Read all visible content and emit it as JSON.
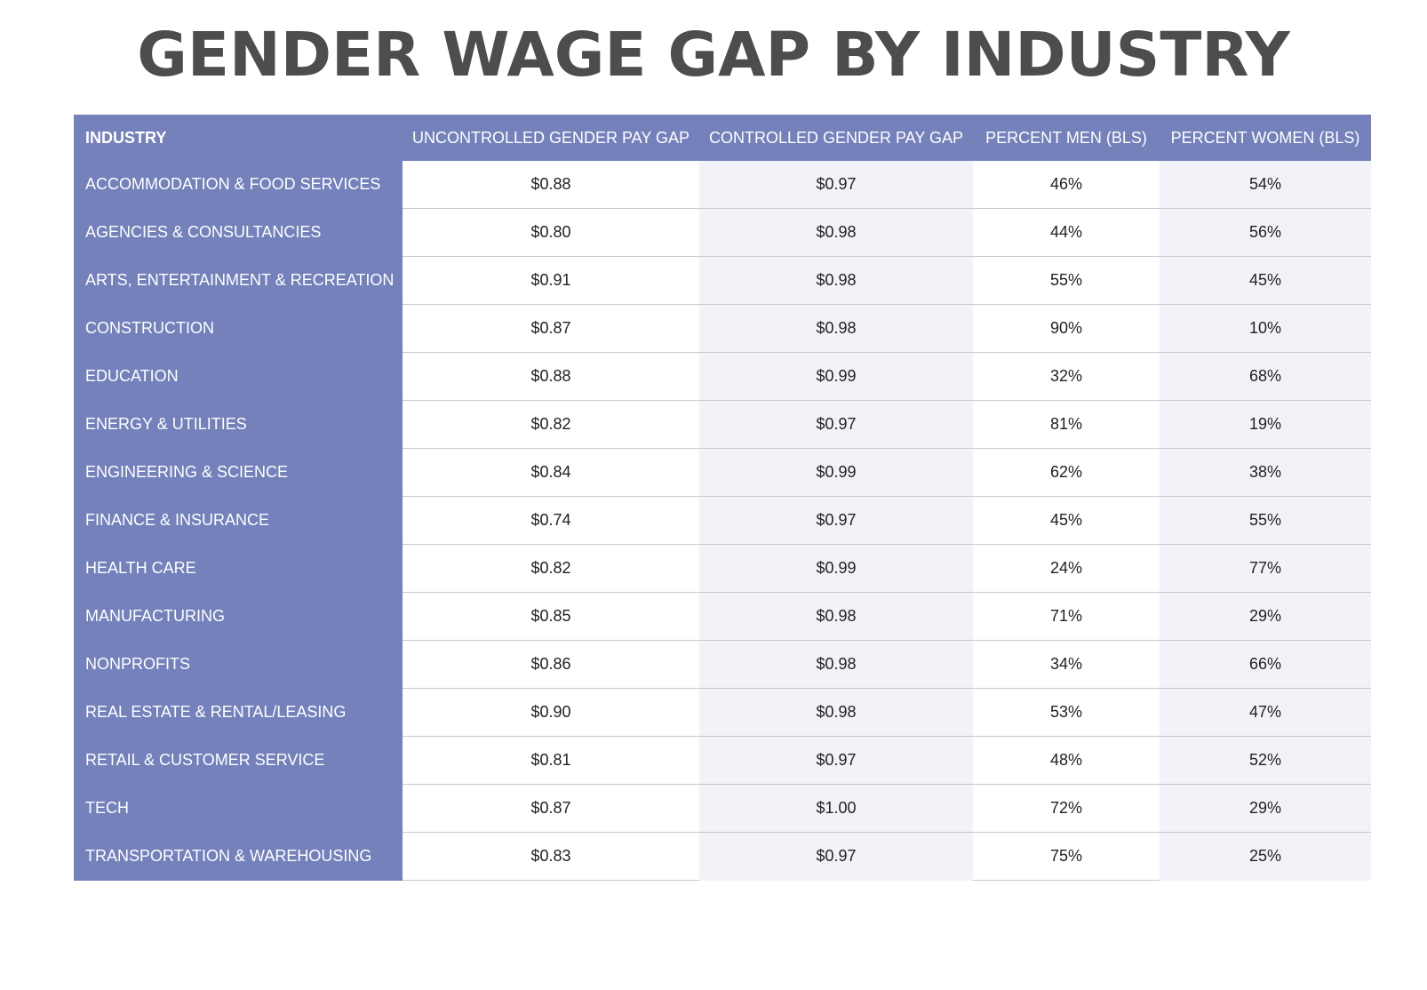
{
  "chart_data": {
    "type": "table",
    "title": "GENDER WAGE GAP BY INDUSTRY",
    "columns": [
      "INDUSTRY",
      "UNCONTROLLED GENDER PAY GAP",
      "CONTROLLED GENDER PAY GAP",
      "PERCENT MEN (BLS)",
      "PERCENT WOMEN (BLS)"
    ],
    "rows": [
      [
        "ACCOMMODATION & FOOD SERVICES",
        "$0.88",
        "$0.97",
        "46%",
        "54%"
      ],
      [
        "AGENCIES & CONSULTANCIES",
        "$0.80",
        "$0.98",
        "44%",
        "56%"
      ],
      [
        "ARTS, ENTERTAINMENT & RECREATION",
        "$0.91",
        "$0.98",
        "55%",
        "45%"
      ],
      [
        "CONSTRUCTION",
        "$0.87",
        "$0.98",
        "90%",
        "10%"
      ],
      [
        "EDUCATION",
        "$0.88",
        "$0.99",
        "32%",
        "68%"
      ],
      [
        "ENERGY & UTILITIES",
        "$0.82",
        "$0.97",
        "81%",
        "19%"
      ],
      [
        "ENGINEERING & SCIENCE",
        "$0.84",
        "$0.99",
        "62%",
        "38%"
      ],
      [
        "FINANCE & INSURANCE",
        "$0.74",
        "$0.97",
        "45%",
        "55%"
      ],
      [
        "HEALTH CARE",
        "$0.82",
        "$0.99",
        "24%",
        "77%"
      ],
      [
        "MANUFACTURING",
        "$0.85",
        "$0.98",
        "71%",
        "29%"
      ],
      [
        "NONPROFITS",
        "$0.86",
        "$0.98",
        "34%",
        "66%"
      ],
      [
        "REAL ESTATE & RENTAL/LEASING",
        "$0.90",
        "$0.98",
        "53%",
        "47%"
      ],
      [
        "RETAIL & CUSTOMER SERVICE",
        "$0.81",
        "$0.97",
        "48%",
        "52%"
      ],
      [
        "TECH",
        "$0.87",
        "$1.00",
        "72%",
        "29%"
      ],
      [
        "TRANSPORTATION & WAREHOUSING",
        "$0.83",
        "$0.97",
        "75%",
        "25%"
      ]
    ]
  },
  "colors": {
    "header_bg": "#7481bb",
    "alt_col_bg": "#f2f3f9",
    "title_color": "#4d4d4d"
  }
}
